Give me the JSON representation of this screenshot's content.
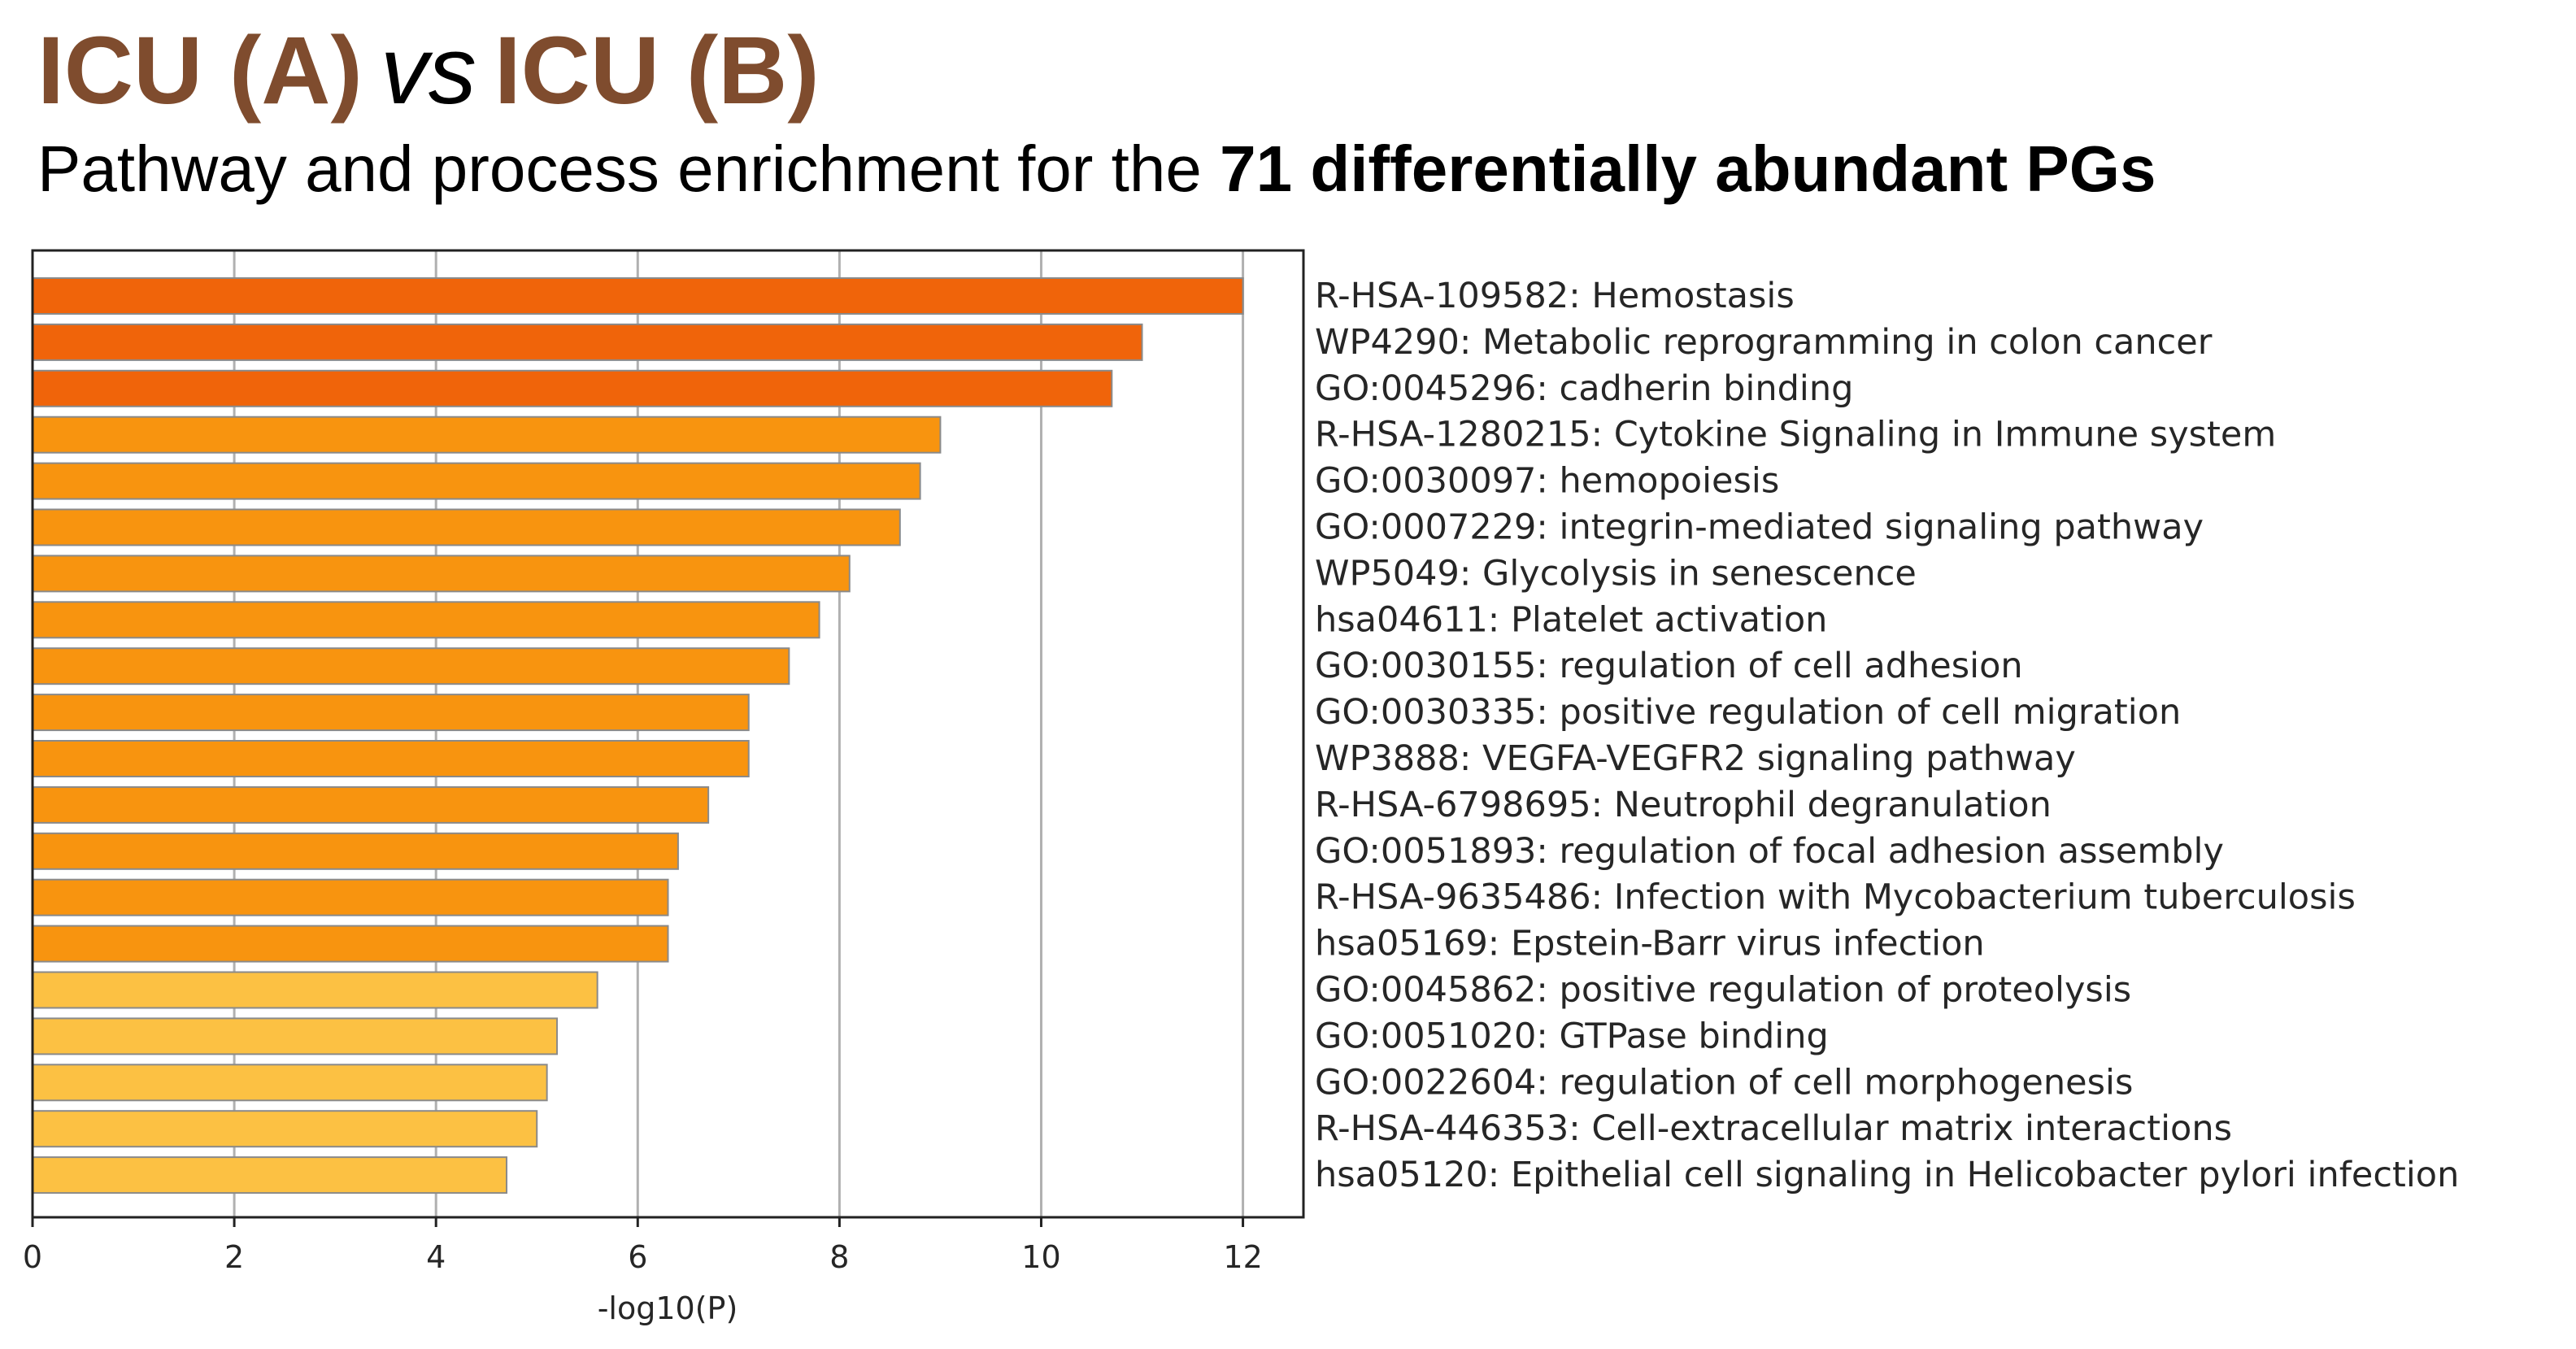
{
  "header": {
    "title_left": "ICU (A)",
    "title_vs": "vs",
    "title_right": "ICU (B)",
    "subtitle_prefix": "Pathway and process enrichment for the ",
    "subtitle_bold": "71 differentially abundant PGs"
  },
  "colors": {
    "title_brown": "#7f4c2e",
    "tier1": "#f0640a",
    "tier2": "#f8940f",
    "tier3": "#fcc143",
    "bar_edge": "#8a8a8a"
  },
  "chart_data": {
    "type": "bar",
    "orientation": "horizontal",
    "xlabel": "-log10(P)",
    "xlim": [
      0,
      12.6
    ],
    "xticks": [
      0,
      2,
      4,
      6,
      8,
      10,
      12
    ],
    "xtick_labels": [
      "0",
      "2",
      "4",
      "6",
      "8",
      "10",
      "12"
    ],
    "grid": "vertical",
    "labels_position": "right",
    "categories": [
      "R-HSA-109582: Hemostasis",
      "WP4290: Metabolic reprogramming in colon cancer",
      "GO:0045296: cadherin binding",
      "R-HSA-1280215: Cytokine Signaling in Immune system",
      "GO:0030097: hemopoiesis",
      "GO:0007229: integrin-mediated signaling pathway",
      "WP5049: Glycolysis in senescence",
      "hsa04611: Platelet activation",
      "GO:0030155: regulation of cell adhesion",
      "GO:0030335: positive regulation of cell migration",
      "WP3888: VEGFA-VEGFR2 signaling pathway",
      "R-HSA-6798695: Neutrophil degranulation",
      "GO:0051893: regulation of focal adhesion assembly",
      "R-HSA-9635486: Infection with Mycobacterium tuberculosis",
      "hsa05169: Epstein-Barr virus infection",
      "GO:0045862: positive regulation of proteolysis",
      "GO:0051020: GTPase binding",
      "GO:0022604: regulation of cell morphogenesis",
      "R-HSA-446353: Cell-extracellular matrix interactions",
      "hsa05120: Epithelial cell signaling in Helicobacter pylori infection"
    ],
    "values": [
      12.0,
      11.0,
      10.7,
      9.0,
      8.8,
      8.6,
      8.1,
      7.8,
      7.5,
      7.1,
      7.1,
      6.7,
      6.4,
      6.3,
      6.3,
      5.6,
      5.2,
      5.1,
      5.0,
      4.7
    ],
    "color_tier": [
      1,
      1,
      1,
      2,
      2,
      2,
      2,
      2,
      2,
      2,
      2,
      2,
      2,
      2,
      2,
      3,
      3,
      3,
      3,
      3
    ]
  }
}
